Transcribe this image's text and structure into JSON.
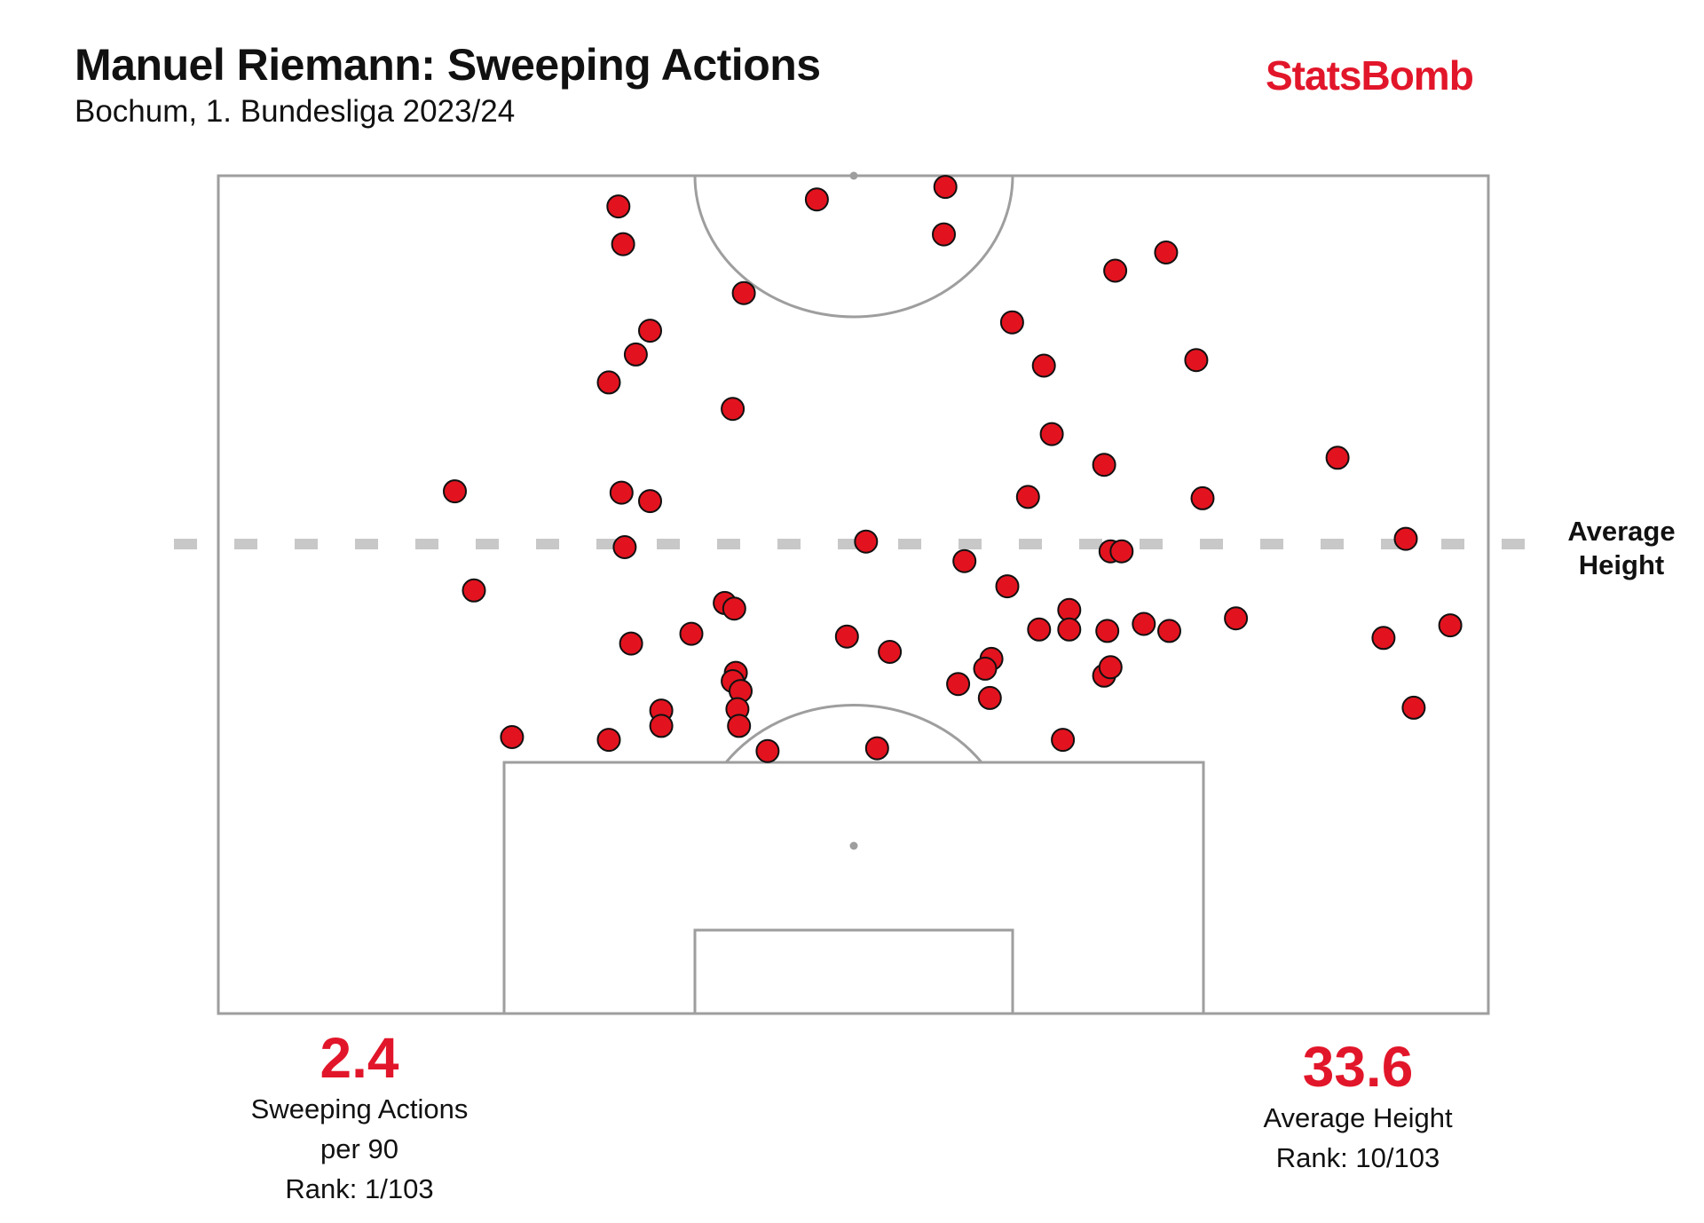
{
  "header": {
    "title": "Manuel Riemann: Sweeping Actions",
    "subtitle": "Bochum, 1. Bundesliga 2023/24",
    "brand": "StatsBomb"
  },
  "stats": {
    "sweeping": {
      "value": "2.4",
      "label_line1": "Sweeping Actions",
      "label_line2": "per 90",
      "rank": "Rank: 1/103"
    },
    "height": {
      "value": "33.6",
      "label_line1": "Average Height",
      "rank": "Rank: 10/103"
    }
  },
  "average_line": {
    "label_line1": "Average",
    "label_line2": "Height"
  },
  "colors": {
    "accent": "#e2162a",
    "marker": "#e2131f",
    "pitch_line": "#9e9e9e",
    "avg_line": "#c8c8c8"
  },
  "chart_data": {
    "type": "scatter",
    "title": "Manuel Riemann: Sweeping Actions",
    "units": "yards from own goal line (pitch 80 wide, half pitch 60 deep)",
    "x_range": [
      0,
      80
    ],
    "y_range": [
      0,
      60
    ],
    "average_height": 33.6,
    "points": [
      {
        "x": 25.2,
        "y": 57.8
      },
      {
        "x": 25.5,
        "y": 55.1
      },
      {
        "x": 37.7,
        "y": 58.3
      },
      {
        "x": 45.8,
        "y": 59.2
      },
      {
        "x": 45.7,
        "y": 55.8
      },
      {
        "x": 33.1,
        "y": 51.6
      },
      {
        "x": 56.5,
        "y": 53.2
      },
      {
        "x": 59.7,
        "y": 54.5
      },
      {
        "x": 27.2,
        "y": 48.9
      },
      {
        "x": 26.3,
        "y": 47.2
      },
      {
        "x": 24.6,
        "y": 45.2
      },
      {
        "x": 32.4,
        "y": 43.3
      },
      {
        "x": 50.0,
        "y": 49.5
      },
      {
        "x": 52.0,
        "y": 46.4
      },
      {
        "x": 61.6,
        "y": 46.8
      },
      {
        "x": 52.5,
        "y": 41.5
      },
      {
        "x": 55.8,
        "y": 39.3
      },
      {
        "x": 70.5,
        "y": 39.8
      },
      {
        "x": 14.9,
        "y": 37.4
      },
      {
        "x": 25.4,
        "y": 37.3
      },
      {
        "x": 27.2,
        "y": 36.7
      },
      {
        "x": 51.0,
        "y": 37.0
      },
      {
        "x": 62.0,
        "y": 36.9
      },
      {
        "x": 74.8,
        "y": 34.0
      },
      {
        "x": 25.6,
        "y": 33.4
      },
      {
        "x": 40.8,
        "y": 33.8
      },
      {
        "x": 56.2,
        "y": 33.1
      },
      {
        "x": 56.9,
        "y": 33.1
      },
      {
        "x": 47.0,
        "y": 32.4
      },
      {
        "x": 16.1,
        "y": 30.3
      },
      {
        "x": 49.7,
        "y": 30.6
      },
      {
        "x": 31.9,
        "y": 29.4
      },
      {
        "x": 32.5,
        "y": 29.0
      },
      {
        "x": 53.6,
        "y": 28.9
      },
      {
        "x": 51.7,
        "y": 27.5
      },
      {
        "x": 53.6,
        "y": 27.5
      },
      {
        "x": 56.0,
        "y": 27.4
      },
      {
        "x": 58.3,
        "y": 27.9
      },
      {
        "x": 59.9,
        "y": 27.4
      },
      {
        "x": 64.1,
        "y": 28.3
      },
      {
        "x": 73.4,
        "y": 26.9
      },
      {
        "x": 77.6,
        "y": 27.8
      },
      {
        "x": 26.0,
        "y": 26.5
      },
      {
        "x": 29.8,
        "y": 27.2
      },
      {
        "x": 39.6,
        "y": 27.0
      },
      {
        "x": 42.3,
        "y": 25.9
      },
      {
        "x": 48.7,
        "y": 25.4
      },
      {
        "x": 48.3,
        "y": 24.7
      },
      {
        "x": 55.8,
        "y": 24.2
      },
      {
        "x": 56.2,
        "y": 24.8
      },
      {
        "x": 32.6,
        "y": 24.4
      },
      {
        "x": 32.4,
        "y": 23.8
      },
      {
        "x": 32.9,
        "y": 23.1
      },
      {
        "x": 46.6,
        "y": 23.6
      },
      {
        "x": 48.6,
        "y": 22.6
      },
      {
        "x": 27.9,
        "y": 21.7
      },
      {
        "x": 27.9,
        "y": 20.6
      },
      {
        "x": 32.7,
        "y": 21.8
      },
      {
        "x": 32.8,
        "y": 20.6
      },
      {
        "x": 75.3,
        "y": 21.9
      },
      {
        "x": 18.5,
        "y": 19.8
      },
      {
        "x": 24.6,
        "y": 19.6
      },
      {
        "x": 34.6,
        "y": 18.8
      },
      {
        "x": 41.5,
        "y": 19.0
      },
      {
        "x": 53.2,
        "y": 19.6
      }
    ]
  }
}
